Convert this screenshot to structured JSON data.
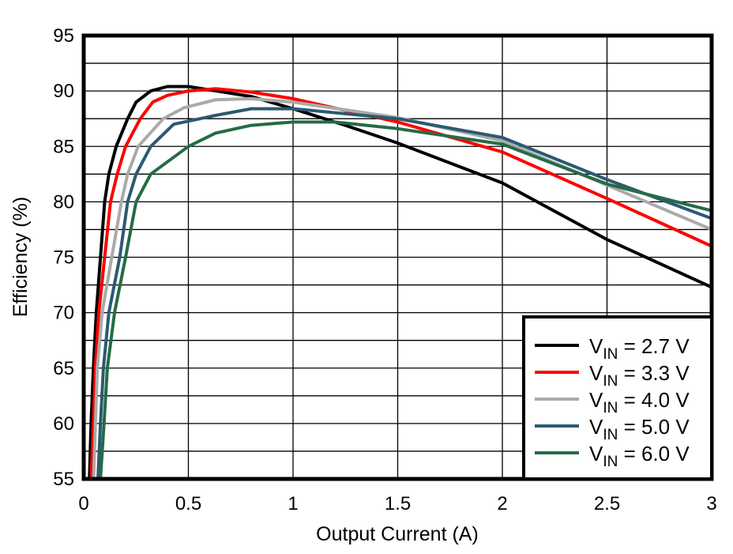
{
  "chart_data": {
    "type": "line",
    "title": "",
    "xlabel": "Output Current (A)",
    "ylabel": "Efficiency (%)",
    "xlim": [
      0,
      3
    ],
    "ylim": [
      55,
      95
    ],
    "xticks": [
      "0",
      "0.5",
      "1",
      "1.5",
      "2",
      "2.5",
      "3"
    ],
    "yticks": [
      "55",
      "60",
      "65",
      "70",
      "75",
      "80",
      "85",
      "90",
      "95"
    ],
    "grid": true,
    "legend_position": "bottom-right",
    "series": [
      {
        "name": "VIN = 2.7 V",
        "color": "#000000",
        "x": [
          0.027,
          0.035,
          0.046,
          0.06,
          0.08,
          0.1,
          0.12,
          0.155,
          0.21,
          0.25,
          0.32,
          0.4,
          0.5,
          0.6,
          0.8,
          1.0,
          1.25,
          1.5,
          2.0,
          2.5,
          3.0
        ],
        "y": [
          55,
          60,
          65,
          70,
          75,
          80,
          82.5,
          85,
          87.5,
          89,
          90,
          90.4,
          90.4,
          90.1,
          89.5,
          88.4,
          86.9,
          85.3,
          81.7,
          76.6,
          72.3
        ]
      },
      {
        "name": "VIN = 3.3 V",
        "color": "#ff0000",
        "x": [
          0.036,
          0.046,
          0.056,
          0.072,
          0.1,
          0.128,
          0.16,
          0.2,
          0.27,
          0.33,
          0.4,
          0.5,
          0.63,
          0.8,
          1.0,
          1.5,
          2.0,
          2.5,
          3.0
        ],
        "y": [
          55,
          60,
          65,
          70,
          75,
          80,
          82.5,
          85,
          87.5,
          89,
          89.6,
          90,
          90.2,
          89.9,
          89.3,
          87.2,
          84.5,
          80.3,
          76.0
        ]
      },
      {
        "name": "VIN = 4.0 V",
        "color": "#aaaaaa",
        "x": [
          0.047,
          0.056,
          0.065,
          0.088,
          0.134,
          0.18,
          0.21,
          0.26,
          0.38,
          0.48,
          0.63,
          0.8,
          1.0,
          1.5,
          2.0,
          2.5,
          3.0
        ],
        "y": [
          55,
          60,
          65,
          70,
          75,
          80,
          82.5,
          85,
          87.5,
          88.5,
          89.2,
          89.3,
          89.0,
          87.6,
          85.5,
          81.5,
          77.5
        ]
      },
      {
        "name": "VIN = 5.0 V",
        "color": "#2b5a71",
        "x": [
          0.068,
          0.08,
          0.094,
          0.12,
          0.172,
          0.21,
          0.25,
          0.32,
          0.43,
          0.63,
          0.8,
          1.0,
          1.5,
          2.0,
          2.5,
          3.0
        ],
        "y": [
          55,
          60,
          65,
          70,
          75,
          80,
          82.5,
          85,
          87,
          87.8,
          88.4,
          88.4,
          87.5,
          85.8,
          82.0,
          78.5
        ]
      },
      {
        "name": "VIN = 6.0 V",
        "color": "#256b47",
        "x": [
          0.08,
          0.097,
          0.113,
          0.147,
          0.2,
          0.25,
          0.32,
          0.5,
          0.63,
          0.8,
          1.0,
          1.2,
          1.5,
          2.0,
          2.5,
          3.0
        ],
        "y": [
          55,
          60,
          65,
          70,
          75,
          80,
          82.5,
          85,
          86.2,
          86.9,
          87.2,
          87.2,
          86.6,
          85.2,
          81.6,
          79.2
        ]
      }
    ]
  }
}
